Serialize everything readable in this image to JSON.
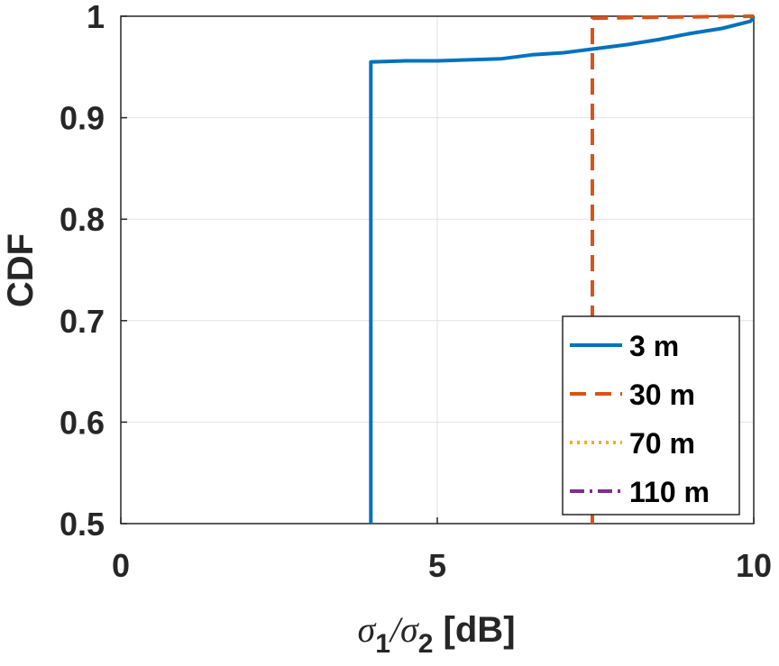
{
  "chart_data": {
    "type": "line",
    "title": "",
    "xlabel": {
      "sigma1": "σ",
      "sub1": "1",
      "slash": "/",
      "sigma2": "σ",
      "sub2": "2",
      "unit": " [dB]"
    },
    "ylabel": "CDF",
    "xlim": [
      0,
      10
    ],
    "ylim": [
      0.5,
      1
    ],
    "xticks": [
      0,
      5,
      10
    ],
    "xtick_labels": [
      "0",
      "5",
      "10"
    ],
    "yticks": [
      0.5,
      0.6,
      0.7,
      0.8,
      0.9,
      1
    ],
    "ytick_labels": [
      "0.5",
      "0.6",
      "0.7",
      "0.8",
      "0.9",
      "1"
    ],
    "grid": true,
    "legend_position": "bottom-right",
    "series": [
      {
        "name": "3 m",
        "color": "#0072BD",
        "style": "solid",
        "x": [
          3.95,
          3.95,
          3.95,
          4.5,
          5.0,
          5.5,
          6.0,
          6.5,
          7.0,
          7.5,
          8.0,
          8.5,
          9.0,
          9.5,
          9.95,
          10.0
        ],
        "y": [
          0.5,
          0.955,
          0.955,
          0.956,
          0.956,
          0.957,
          0.958,
          0.962,
          0.964,
          0.968,
          0.972,
          0.977,
          0.983,
          0.988,
          0.995,
          1.0
        ]
      },
      {
        "name": "30 m",
        "color": "#D95319",
        "style": "dashed",
        "x": [
          7.45,
          7.45,
          7.45,
          8.5,
          10.0
        ],
        "y": [
          0.5,
          0.998,
          0.998,
          0.999,
          1.0
        ]
      },
      {
        "name": "70 m",
        "color": "#EDB120",
        "style": "dotted",
        "x": [],
        "y": []
      },
      {
        "name": "110 m",
        "color": "#7E2F8E",
        "style": "dashdot",
        "x": [],
        "y": []
      }
    ]
  }
}
